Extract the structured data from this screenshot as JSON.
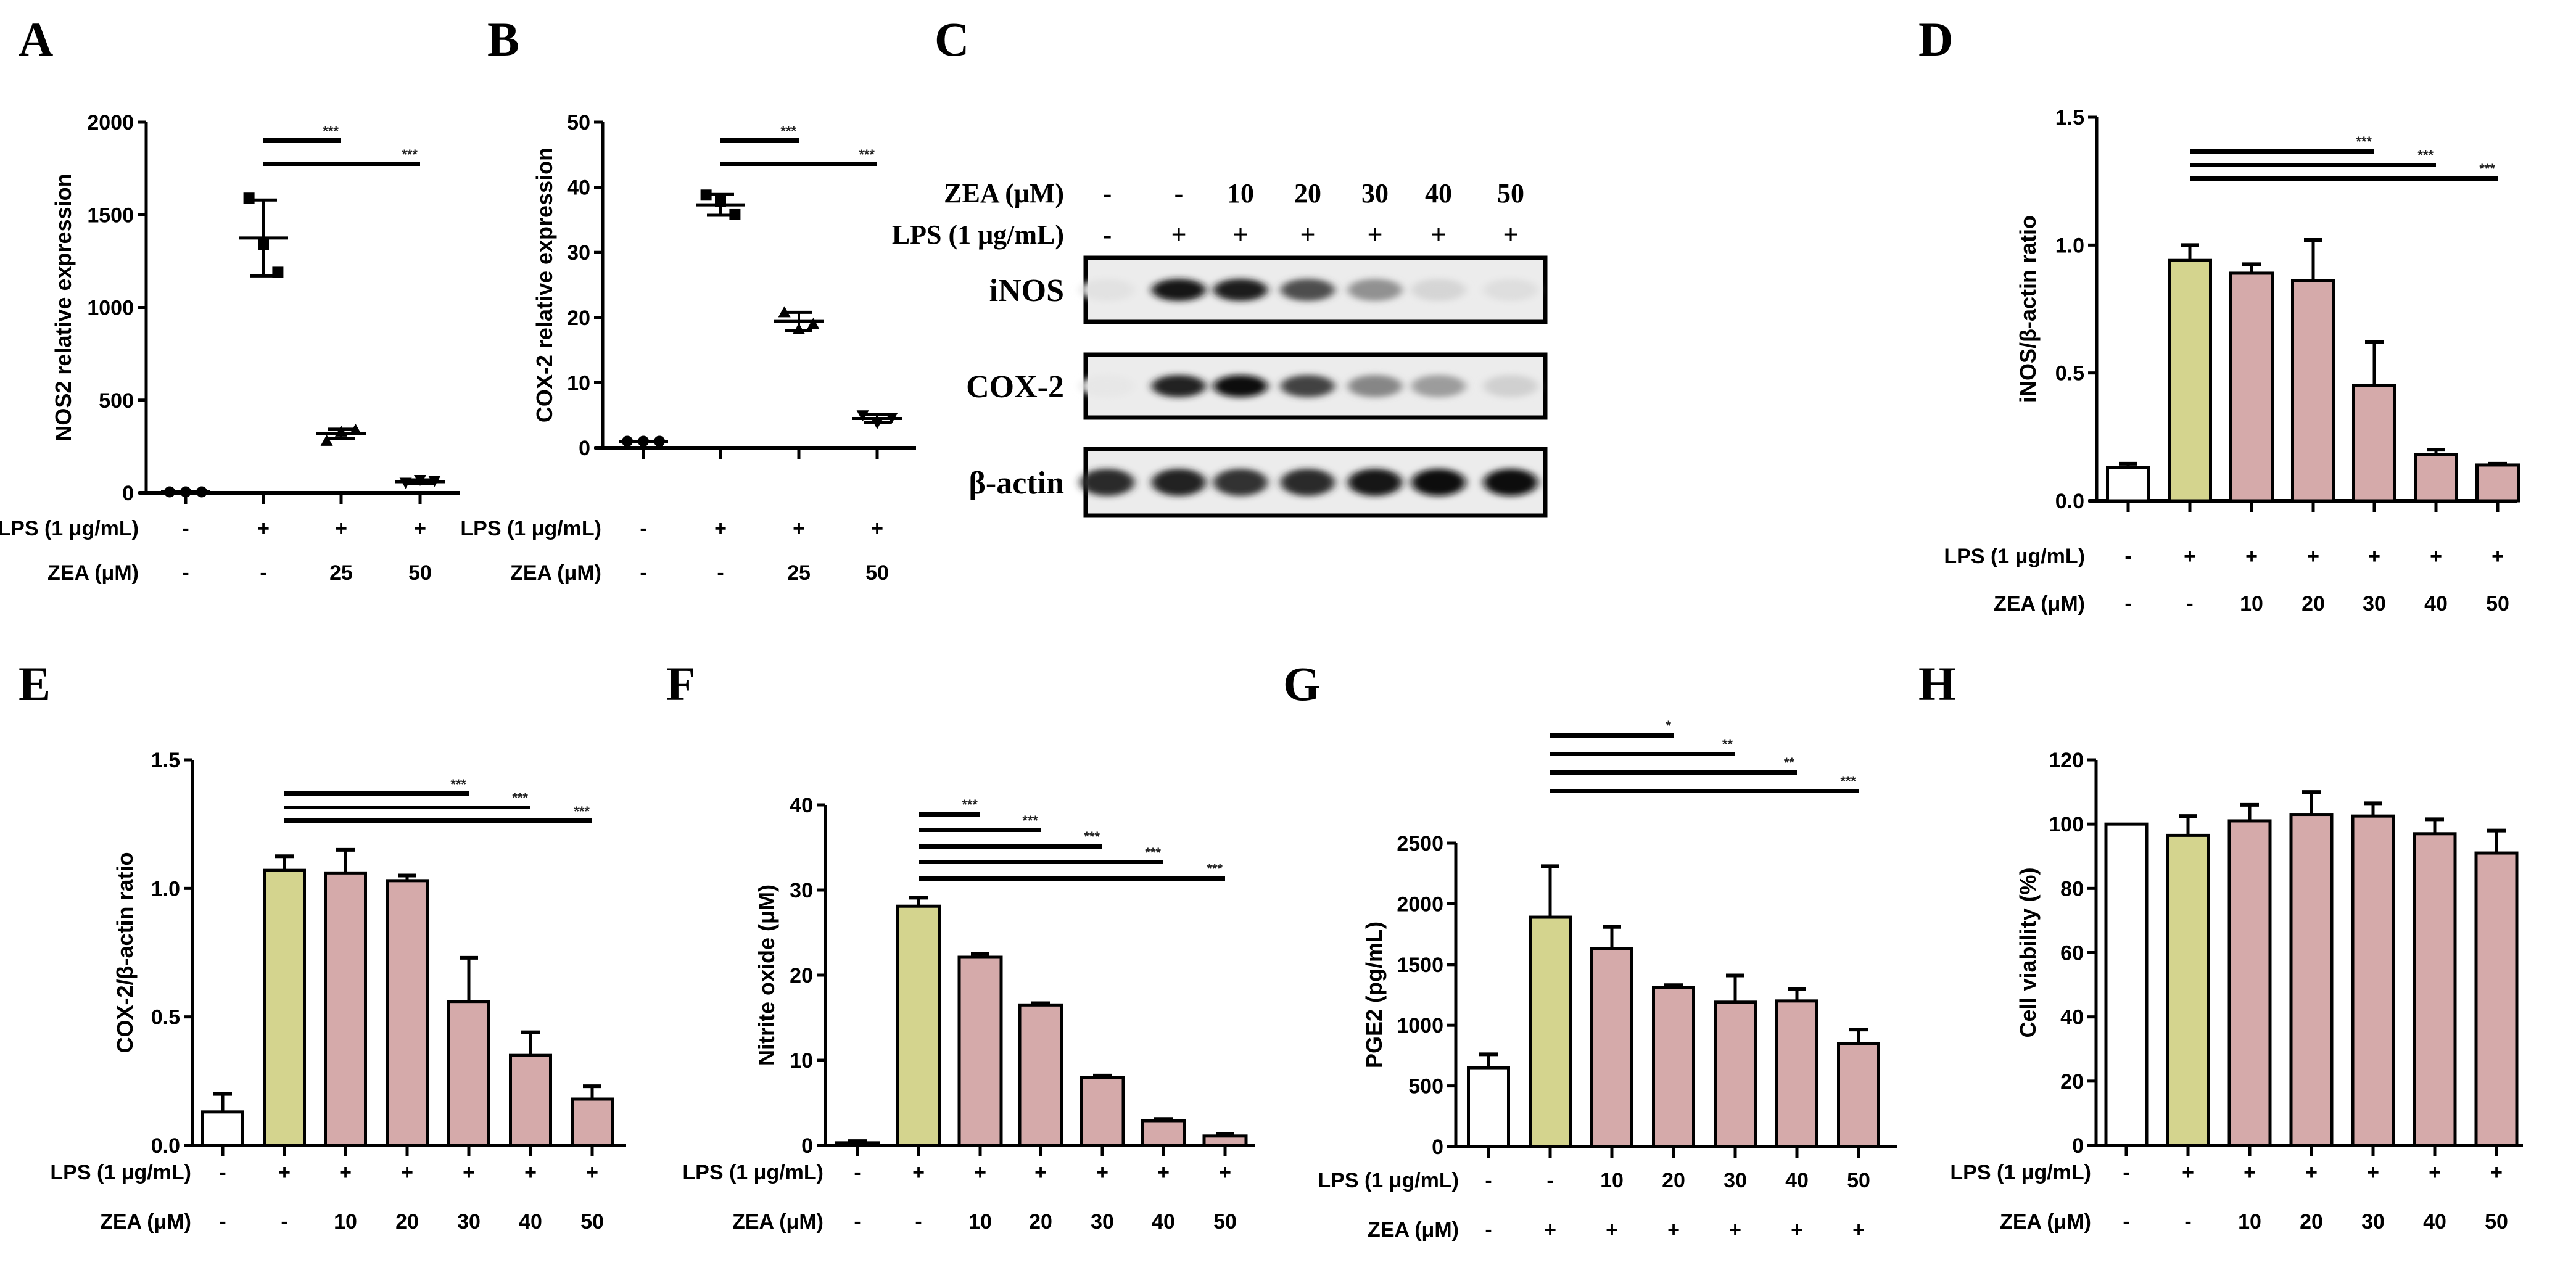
{
  "figure": {
    "panels": [
      "A",
      "B",
      "C",
      "D",
      "E",
      "F",
      "G",
      "H"
    ]
  },
  "colors": {
    "control": "#ffffff",
    "lps": "#d4d48e",
    "zea": "#d5aaaa",
    "stroke": "#000000"
  },
  "chart_data": [
    {
      "panel": "A",
      "type": "scatter",
      "ylabel": "NOS2 relative expression",
      "ylim": [
        0,
        2000
      ],
      "yticks": [
        0,
        500,
        1000,
        1500,
        2000
      ],
      "rows": [
        {
          "label": "LPS (1 μg/mL)",
          "values": [
            "-",
            "+",
            "+",
            "+"
          ]
        },
        {
          "label": "ZEA (μM)",
          "values": [
            "-",
            "-",
            "25",
            "50"
          ]
        }
      ],
      "groups": [
        {
          "points": [
            5,
            5,
            5
          ],
          "mean": 5,
          "sd": 0
        },
        {
          "points": [
            1590,
            1340,
            1190
          ],
          "mean": 1375,
          "sd": 205
        },
        {
          "points": [
            280,
            330,
            340
          ],
          "mean": 318,
          "sd": 25
        },
        {
          "points": [
            55,
            70,
            65
          ],
          "mean": 60,
          "sd": 10
        }
      ],
      "significance": [
        {
          "from": 1,
          "to": 2,
          "label": "***"
        },
        {
          "from": 1,
          "to": 3,
          "label": "***"
        }
      ]
    },
    {
      "panel": "B",
      "type": "scatter",
      "ylabel": "COX-2 relative expression",
      "ylim": [
        0,
        50
      ],
      "yticks": [
        0,
        10,
        20,
        30,
        40,
        50
      ],
      "rows": [
        {
          "label": "LPS (1 μg/mL)",
          "values": [
            "-",
            "+",
            "+",
            "+"
          ]
        },
        {
          "label": "ZEA (μM)",
          "values": [
            "-",
            "-",
            "25",
            "50"
          ]
        }
      ],
      "groups": [
        {
          "points": [
            1,
            1,
            1
          ],
          "mean": 1,
          "sd": 0
        },
        {
          "points": [
            38.8,
            37.8,
            35.8
          ],
          "mean": 37.3,
          "sd": 1.6
        },
        {
          "points": [
            20.8,
            18.2,
            19.0
          ],
          "mean": 19.4,
          "sd": 1.4
        },
        {
          "points": [
            5.0,
            3.8,
            4.6
          ],
          "mean": 4.5,
          "sd": 0.6
        }
      ],
      "significance": [
        {
          "from": 1,
          "to": 2,
          "label": "***"
        },
        {
          "from": 1,
          "to": 3,
          "label": "***"
        }
      ]
    },
    {
      "panel": "C",
      "type": "table",
      "title": "Western blot",
      "rows": [
        {
          "label": "ZEA (μM)",
          "values": [
            "-",
            "-",
            "10",
            "20",
            "30",
            "40",
            "50"
          ]
        },
        {
          "label": "LPS (1 μg/mL)",
          "values": [
            "-",
            "+",
            "+",
            "+",
            "+",
            "+",
            "+"
          ]
        }
      ],
      "blots": [
        {
          "label": "iNOS",
          "intensity": [
            0.04,
            0.95,
            0.92,
            0.7,
            0.4,
            0.1,
            0.06
          ]
        },
        {
          "label": "COX-2",
          "intensity": [
            0.02,
            0.9,
            1.0,
            0.75,
            0.45,
            0.35,
            0.12
          ]
        },
        {
          "label": "β-actin",
          "intensity": [
            0.85,
            0.9,
            0.82,
            0.85,
            0.95,
            0.97,
            0.97
          ]
        }
      ]
    },
    {
      "panel": "D",
      "type": "bar",
      "ylabel": "iNOS/β-actin ratio",
      "ylim": [
        0,
        1.5
      ],
      "yticks": [
        "0.0",
        "0.5",
        "1.0",
        "1.5"
      ],
      "rows": [
        {
          "label": "LPS (1 μg/mL)",
          "values": [
            "-",
            "+",
            "+",
            "+",
            "+",
            "+",
            "+"
          ]
        },
        {
          "label": "ZEA (μM)",
          "values": [
            "-",
            "-",
            "10",
            "20",
            "30",
            "40",
            "50"
          ]
        }
      ],
      "values": [
        0.13,
        0.94,
        0.89,
        0.86,
        0.45,
        0.18,
        0.14
      ],
      "errors": [
        0.015,
        0.06,
        0.035,
        0.16,
        0.17,
        0.02,
        0.005
      ],
      "fill": [
        "control",
        "lps",
        "zea",
        "zea",
        "zea",
        "zea",
        "zea"
      ],
      "significance": [
        {
          "from": 1,
          "to": 4,
          "label": "***"
        },
        {
          "from": 1,
          "to": 5,
          "label": "***"
        },
        {
          "from": 1,
          "to": 6,
          "label": "***"
        }
      ]
    },
    {
      "panel": "E",
      "type": "bar",
      "ylabel": "COX-2/β-actin ratio",
      "ylim": [
        0,
        1.5
      ],
      "yticks": [
        "0.0",
        "0.5",
        "1.0",
        "1.5"
      ],
      "rows": [
        {
          "label": "LPS (1 μg/mL)",
          "values": [
            "-",
            "+",
            "+",
            "+",
            "+",
            "+",
            "+"
          ]
        },
        {
          "label": "ZEA (μM)",
          "values": [
            "-",
            "-",
            "10",
            "20",
            "30",
            "40",
            "50"
          ]
        }
      ],
      "values": [
        0.13,
        1.07,
        1.06,
        1.03,
        0.56,
        0.35,
        0.18
      ],
      "errors": [
        0.07,
        0.055,
        0.09,
        0.02,
        0.17,
        0.09,
        0.05
      ],
      "fill": [
        "control",
        "lps",
        "zea",
        "zea",
        "zea",
        "zea",
        "zea"
      ],
      "significance": [
        {
          "from": 1,
          "to": 4,
          "label": "***"
        },
        {
          "from": 1,
          "to": 5,
          "label": "***"
        },
        {
          "from": 1,
          "to": 6,
          "label": "***"
        }
      ]
    },
    {
      "panel": "F",
      "type": "bar",
      "ylabel": "Nitrite oxide (μM)",
      "ylim": [
        0,
        40
      ],
      "yticks": [
        0,
        10,
        20,
        30,
        40
      ],
      "rows": [
        {
          "label": "LPS (1 μg/mL)",
          "values": [
            "-",
            "+",
            "+",
            "+",
            "+",
            "+",
            "+"
          ]
        },
        {
          "label": "ZEA (μM)",
          "values": [
            "-",
            "-",
            "10",
            "20",
            "30",
            "40",
            "50"
          ]
        }
      ],
      "values": [
        0.3,
        28.1,
        22.1,
        16.5,
        8.0,
        2.9,
        1.1
      ],
      "errors": [
        0.2,
        1.0,
        0.4,
        0.2,
        0.2,
        0.2,
        0.2
      ],
      "fill": [
        "control",
        "lps",
        "zea",
        "zea",
        "zea",
        "zea",
        "zea"
      ],
      "significance": [
        {
          "from": 1,
          "to": 2,
          "label": "***"
        },
        {
          "from": 1,
          "to": 3,
          "label": "***"
        },
        {
          "from": 1,
          "to": 4,
          "label": "***"
        },
        {
          "from": 1,
          "to": 5,
          "label": "***"
        },
        {
          "from": 1,
          "to": 6,
          "label": "***"
        }
      ]
    },
    {
      "panel": "G",
      "type": "bar",
      "ylabel": "PGE2 (pg/mL)",
      "ylim": [
        0,
        2500
      ],
      "yticks": [
        0,
        500,
        1000,
        1500,
        2000,
        2500
      ],
      "rows": [
        {
          "label": "LPS (1 μg/mL)",
          "values": [
            "-",
            "-",
            "10",
            "20",
            "30",
            "40",
            "50"
          ]
        },
        {
          "label": "ZEA (μM)",
          "values": [
            "-",
            "+",
            "+",
            "+",
            "+",
            "+",
            "+"
          ]
        }
      ],
      "values": [
        650,
        1890,
        1630,
        1310,
        1190,
        1200,
        850
      ],
      "errors": [
        110,
        420,
        180,
        20,
        220,
        100,
        115
      ],
      "fill": [
        "control",
        "lps",
        "zea",
        "zea",
        "zea",
        "zea",
        "zea"
      ],
      "significance": [
        {
          "from": 1,
          "to": 3,
          "label": "*"
        },
        {
          "from": 1,
          "to": 4,
          "label": "**"
        },
        {
          "from": 1,
          "to": 5,
          "label": "**"
        },
        {
          "from": 1,
          "to": 6,
          "label": "***"
        }
      ]
    },
    {
      "panel": "H",
      "type": "bar",
      "ylabel": "Cell viability (%)",
      "ylim": [
        0,
        120
      ],
      "yticks": [
        0,
        20,
        40,
        60,
        80,
        100,
        120
      ],
      "rows": [
        {
          "label": "LPS (1 μg/mL)",
          "values": [
            "-",
            "+",
            "+",
            "+",
            "+",
            "+",
            "+"
          ]
        },
        {
          "label": "ZEA (μM)",
          "values": [
            "-",
            "-",
            "10",
            "20",
            "30",
            "40",
            "50"
          ]
        }
      ],
      "values": [
        100,
        96.5,
        101,
        103,
        102.5,
        97,
        91
      ],
      "errors": [
        0,
        6,
        5,
        7,
        4,
        4.5,
        7
      ],
      "fill": [
        "control",
        "lps",
        "zea",
        "zea",
        "zea",
        "zea",
        "zea"
      ],
      "significance": []
    }
  ]
}
